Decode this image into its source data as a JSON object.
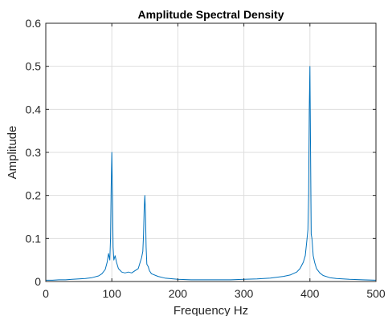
{
  "chart_data": {
    "type": "line",
    "title": "Amplitude Spectral Density",
    "xlabel": "Frequency Hz",
    "ylabel": "Amplitude",
    "xlim": [
      0,
      500
    ],
    "ylim": [
      0,
      0.6
    ],
    "x_ticks": [
      0,
      100,
      200,
      300,
      400,
      500
    ],
    "x_tick_labels": [
      "0",
      "100",
      "200",
      "300",
      "400",
      "500"
    ],
    "y_ticks": [
      0,
      0.1,
      0.2,
      0.3,
      0.4,
      0.5,
      0.6
    ],
    "y_tick_labels": [
      "0",
      "0.1",
      "0.2",
      "0.3",
      "0.4",
      "0.5",
      "0.6"
    ],
    "grid": true,
    "line_color": "#0072BD",
    "series": [
      {
        "x": [
          0,
          10,
          20,
          30,
          40,
          50,
          60,
          70,
          80,
          85,
          90,
          93,
          95,
          97,
          98,
          99,
          100,
          101,
          102,
          103,
          105,
          107,
          110,
          115,
          120,
          125,
          130,
          135,
          140,
          143,
          145,
          147,
          148,
          149,
          150,
          151,
          152,
          153,
          155,
          157,
          160,
          170,
          180,
          200,
          220,
          250,
          280,
          300,
          320,
          340,
          360,
          370,
          380,
          385,
          390,
          393,
          395,
          397,
          398,
          399,
          400,
          401,
          402,
          403,
          405,
          407,
          410,
          415,
          420,
          430,
          440,
          460,
          480,
          500
        ],
        "y": [
          0.003,
          0.003,
          0.004,
          0.004,
          0.005,
          0.006,
          0.007,
          0.009,
          0.013,
          0.018,
          0.028,
          0.045,
          0.065,
          0.05,
          0.1,
          0.22,
          0.3,
          0.2,
          0.08,
          0.05,
          0.06,
          0.045,
          0.03,
          0.022,
          0.02,
          0.022,
          0.02,
          0.025,
          0.03,
          0.045,
          0.055,
          0.07,
          0.11,
          0.17,
          0.2,
          0.16,
          0.08,
          0.04,
          0.035,
          0.025,
          0.018,
          0.012,
          0.008,
          0.005,
          0.004,
          0.004,
          0.004,
          0.005,
          0.006,
          0.008,
          0.012,
          0.015,
          0.022,
          0.03,
          0.045,
          0.06,
          0.09,
          0.12,
          0.2,
          0.4,
          0.5,
          0.3,
          0.11,
          0.1,
          0.06,
          0.045,
          0.03,
          0.02,
          0.014,
          0.009,
          0.007,
          0.005,
          0.004,
          0.003
        ]
      }
    ]
  }
}
